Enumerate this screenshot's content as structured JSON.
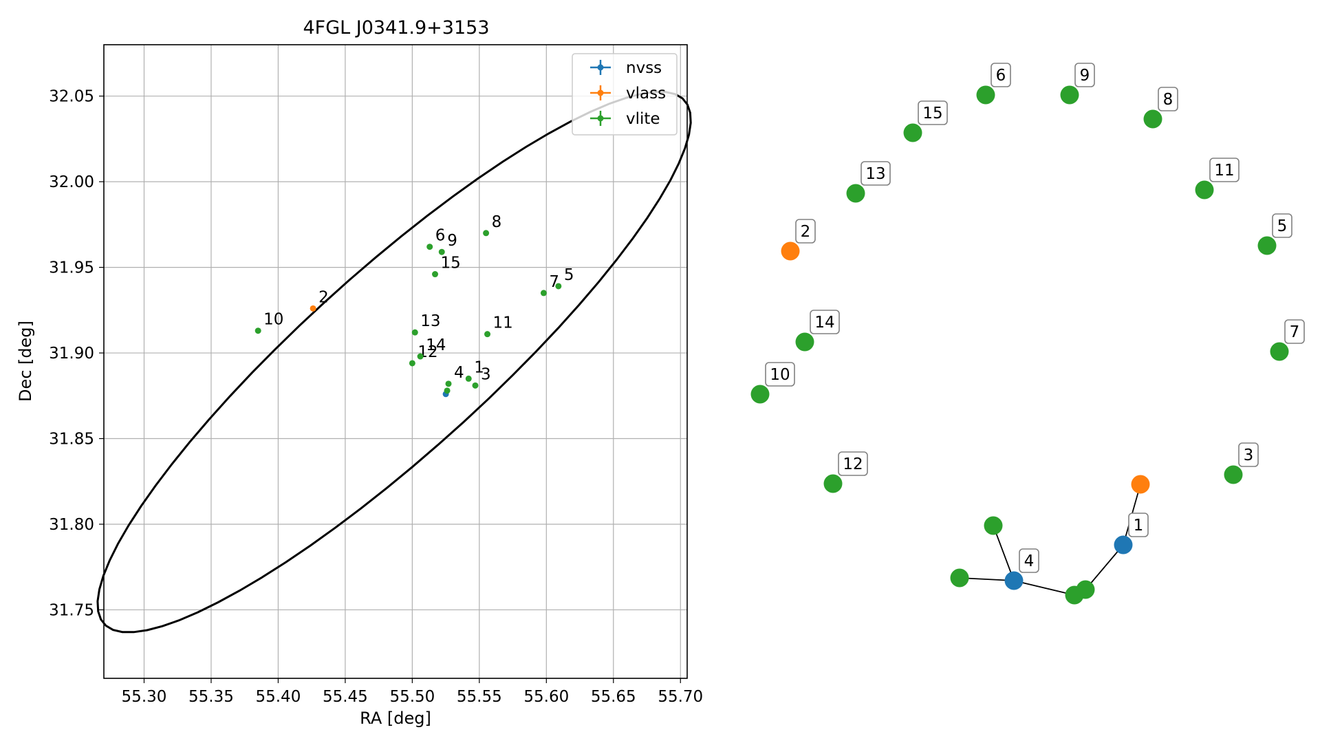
{
  "chart_data": [
    {
      "type": "scatter",
      "title": "4FGL J0341.9+3153",
      "xlabel": "RA [deg]",
      "ylabel": "Dec [deg]",
      "xlim": [
        55.27,
        55.705
      ],
      "ylim": [
        31.71,
        32.08
      ],
      "grid": true,
      "legend_position": "top-right",
      "x_ticks": [
        "55.30",
        "55.35",
        "55.40",
        "55.45",
        "55.50",
        "55.55",
        "55.60",
        "55.65",
        "55.70"
      ],
      "y_ticks": [
        "31.75",
        "31.80",
        "31.85",
        "31.90",
        "31.95",
        "32.00",
        "32.05"
      ],
      "ellipse": {
        "center": [
          55.4865,
          31.8947
        ],
        "semi_axis_a_deg": 0.2654,
        "semi_axis_b_deg": 0.0584,
        "angle_deg": 34.5,
        "color": "#000000"
      },
      "series": [
        {
          "name": "nvss",
          "color": "#1f77b4",
          "points": [
            {
              "label": "",
              "x": 55.525,
              "y": 31.876
            }
          ]
        },
        {
          "name": "vlass",
          "color": "#ff7f0e",
          "points": [
            {
              "label": "2",
              "x": 55.426,
              "y": 31.926
            }
          ]
        },
        {
          "name": "vlite",
          "color": "#2ca02c",
          "points": [
            {
              "label": "1",
              "x": 55.542,
              "y": 31.885
            },
            {
              "label": "3",
              "x": 55.547,
              "y": 31.881
            },
            {
              "label": "4",
              "x": 55.527,
              "y": 31.882
            },
            {
              "label": "",
              "x": 55.526,
              "y": 31.878
            },
            {
              "label": "5",
              "x": 55.609,
              "y": 31.939
            },
            {
              "label": "6",
              "x": 55.513,
              "y": 31.962
            },
            {
              "label": "7",
              "x": 55.598,
              "y": 31.935
            },
            {
              "label": "8",
              "x": 55.555,
              "y": 31.97
            },
            {
              "label": "9",
              "x": 55.522,
              "y": 31.959
            },
            {
              "label": "10",
              "x": 55.385,
              "y": 31.913
            },
            {
              "label": "11",
              "x": 55.556,
              "y": 31.911
            },
            {
              "label": "12",
              "x": 55.5,
              "y": 31.894
            },
            {
              "label": "13",
              "x": 55.502,
              "y": 31.912
            },
            {
              "label": "14",
              "x": 55.506,
              "y": 31.898
            },
            {
              "label": "15",
              "x": 55.517,
              "y": 31.946
            }
          ]
        }
      ]
    },
    {
      "type": "network",
      "colors": {
        "nvss": "#1f77b4",
        "vlass": "#ff7f0e",
        "vlite": "#2ca02c",
        "edge": "#000000",
        "label_border": "#808080"
      },
      "nodes": [
        {
          "id": "6",
          "survey": "vlite",
          "label": "6"
        },
        {
          "id": "9",
          "survey": "vlite",
          "label": "9"
        },
        {
          "id": "15",
          "survey": "vlite",
          "label": "15"
        },
        {
          "id": "8",
          "survey": "vlite",
          "label": "8"
        },
        {
          "id": "13",
          "survey": "vlite",
          "label": "13"
        },
        {
          "id": "11",
          "survey": "vlite",
          "label": "11"
        },
        {
          "id": "2",
          "survey": "vlass",
          "label": "2"
        },
        {
          "id": "5",
          "survey": "vlite",
          "label": "5"
        },
        {
          "id": "14",
          "survey": "vlite",
          "label": "14"
        },
        {
          "id": "7",
          "survey": "vlite",
          "label": "7"
        },
        {
          "id": "10",
          "survey": "vlite",
          "label": "10"
        },
        {
          "id": "12",
          "survey": "vlite",
          "label": "12"
        },
        {
          "id": "3",
          "survey": "vlite",
          "label": "3"
        },
        {
          "id": "v1",
          "survey": "vlass",
          "label": ""
        },
        {
          "id": "g1",
          "survey": "vlite",
          "label": ""
        },
        {
          "id": "1",
          "survey": "nvss",
          "label": "1"
        },
        {
          "id": "4",
          "survey": "nvss",
          "label": "4"
        },
        {
          "id": "g2",
          "survey": "vlite",
          "label": ""
        },
        {
          "id": "g3",
          "survey": "vlite",
          "label": ""
        },
        {
          "id": "g4",
          "survey": "vlite",
          "label": ""
        }
      ],
      "edges": [
        [
          "v1",
          "1"
        ],
        [
          "1",
          "g4"
        ],
        [
          "g1",
          "4"
        ],
        [
          "g2",
          "4"
        ],
        [
          "4",
          "g3"
        ]
      ]
    }
  ]
}
